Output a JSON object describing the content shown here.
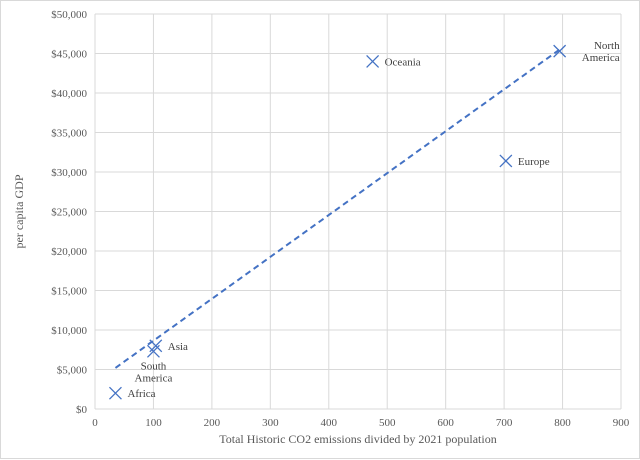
{
  "chart_data": {
    "type": "scatter",
    "title": "",
    "xlabel": "Total Historic CO2 emissions divided by 2021 population",
    "ylabel": "per capita GDP",
    "xlim": [
      0,
      900
    ],
    "ylim": [
      0,
      50000
    ],
    "x_ticks": [
      "0",
      "100",
      "200",
      "300",
      "400",
      "500",
      "600",
      "700",
      "800",
      "900"
    ],
    "y_ticks": [
      "$0",
      "$5,000",
      "$10,000",
      "$15,000",
      "$20,000",
      "$25,000",
      "$30,000",
      "$35,000",
      "$40,000",
      "$45,000",
      "$50,000"
    ],
    "grid": true,
    "marker": "x",
    "series_color": "#4472c4",
    "points": [
      {
        "label": [
          "Africa"
        ],
        "x": 35,
        "y": 2000,
        "label_pos": "right"
      },
      {
        "label": [
          "Asia"
        ],
        "x": 104,
        "y": 8000,
        "label_pos": "right"
      },
      {
        "label": [
          "South",
          "America"
        ],
        "x": 100,
        "y": 7300,
        "label_pos": "below"
      },
      {
        "label": [
          "Oceania"
        ],
        "x": 475,
        "y": 44000,
        "label_pos": "right"
      },
      {
        "label": [
          "Europe"
        ],
        "x": 703,
        "y": 31400,
        "label_pos": "right"
      },
      {
        "label": [
          "North",
          "America"
        ],
        "x": 795,
        "y": 45300,
        "label_pos": "above-right"
      }
    ],
    "trendline": {
      "style": "dashed",
      "x": [
        35,
        795
      ],
      "y": [
        5200,
        45500
      ]
    }
  }
}
